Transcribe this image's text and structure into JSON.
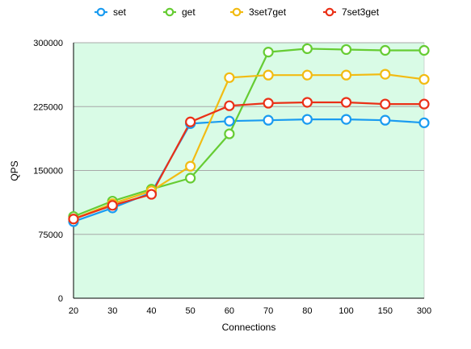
{
  "chart_data": {
    "type": "line",
    "title": "",
    "xlabel": "Connections",
    "ylabel": "QPS",
    "categories": [
      "20",
      "30",
      "40",
      "50",
      "60",
      "70",
      "80",
      "100",
      "150",
      "300"
    ],
    "ylim": [
      0,
      300000
    ],
    "yticks": [
      "0",
      "75000",
      "150000",
      "225000",
      "300000"
    ],
    "grid": "horizontal",
    "legend_position": "top",
    "plot_background": "#d9fbe6",
    "series": [
      {
        "name": "set",
        "color": "#1a9bf0",
        "values": [
          90000,
          106000,
          124000,
          205000,
          208000,
          209000,
          210000,
          210000,
          209000,
          206000
        ]
      },
      {
        "name": "get",
        "color": "#66cc33",
        "values": [
          96000,
          114000,
          128000,
          141000,
          193000,
          289000,
          293000,
          292000,
          291000,
          291000
        ]
      },
      {
        "name": "3set7get",
        "color": "#f2bb12",
        "values": [
          93000,
          111000,
          126000,
          155000,
          259000,
          262000,
          262000,
          262000,
          263000,
          257000
        ]
      },
      {
        "name": "7set3get",
        "color": "#ea3017",
        "values": [
          93000,
          109000,
          122000,
          207000,
          226000,
          229000,
          230000,
          230000,
          228000,
          228000
        ]
      }
    ]
  }
}
